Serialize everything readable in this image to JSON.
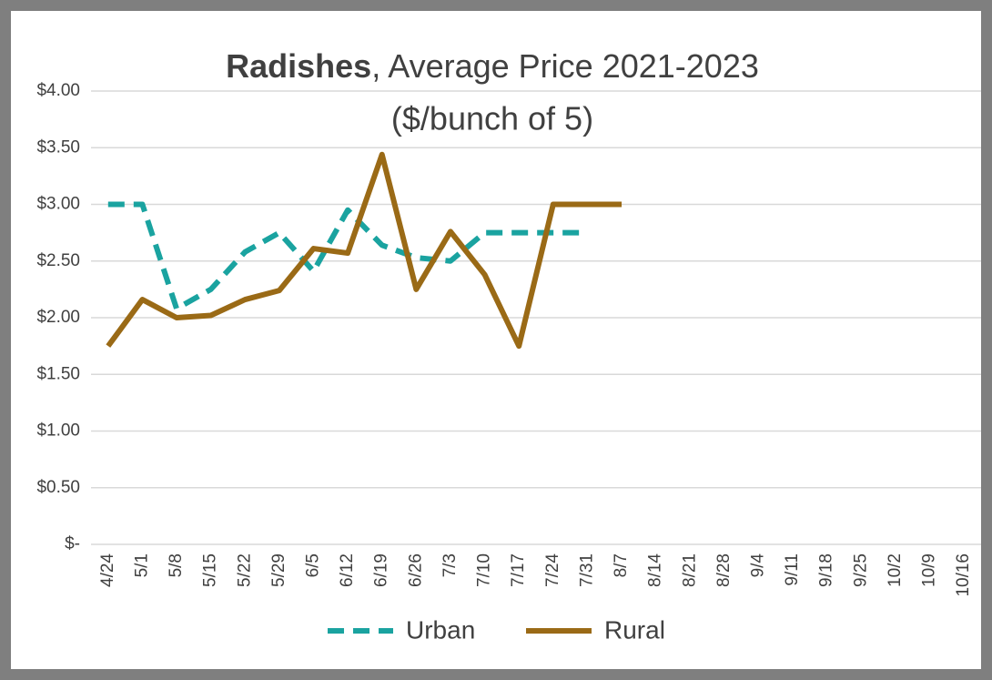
{
  "chart_data": {
    "type": "line",
    "title": [
      "Radishes",
      ", Average Price 2021-2023",
      "($/bunch of 5)"
    ],
    "categories": [
      "4/24",
      "5/1",
      "5/8",
      "5/15",
      "5/22",
      "5/29",
      "6/5",
      "6/12",
      "6/19",
      "6/26",
      "7/3",
      "7/10",
      "7/17",
      "7/24",
      "7/31",
      "8/7",
      "8/14",
      "8/21",
      "8/28",
      "9/4",
      "9/11",
      "9/18",
      "9/25",
      "10/2",
      "10/9",
      "10/16"
    ],
    "series": [
      {
        "name": "Urban",
        "color": "#1aa3a0",
        "dashed": true,
        "values": [
          3.0,
          3.0,
          2.08,
          2.25,
          2.58,
          2.75,
          2.41,
          2.95,
          2.64,
          2.53,
          2.5,
          2.75,
          2.75,
          2.75,
          2.75,
          null,
          null,
          null,
          null,
          null,
          null,
          null,
          null,
          null,
          null,
          null
        ]
      },
      {
        "name": "Rural",
        "color": "#9a6a16",
        "dashed": false,
        "values": [
          1.75,
          2.16,
          2.0,
          2.02,
          2.16,
          2.24,
          2.61,
          2.57,
          3.44,
          2.25,
          2.76,
          2.38,
          1.75,
          3.0,
          3.0,
          3.0,
          null,
          null,
          null,
          null,
          null,
          null,
          null,
          null,
          null,
          null
        ]
      }
    ],
    "ylim": [
      0,
      4
    ],
    "yticks": [
      {
        "value": 0,
        "label": "$-"
      },
      {
        "value": 0.5,
        "label": "$0.50"
      },
      {
        "value": 1,
        "label": "$1.00"
      },
      {
        "value": 1.5,
        "label": "$1.50"
      },
      {
        "value": 2,
        "label": "$2.00"
      },
      {
        "value": 2.5,
        "label": "$2.50"
      },
      {
        "value": 3,
        "label": "$3.00"
      },
      {
        "value": 3.5,
        "label": "$3.50"
      },
      {
        "value": 4,
        "label": "$4.00"
      }
    ],
    "grid": true,
    "legend": "bottom"
  }
}
